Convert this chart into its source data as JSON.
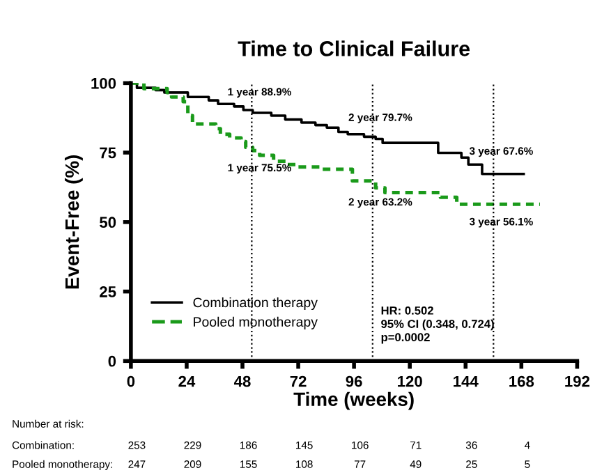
{
  "chart_data": {
    "type": "step",
    "title": "Time to Clinical Failure",
    "xlabel": "Time (weeks)",
    "ylabel": "Event-Free (%)",
    "xlim": [
      0,
      192
    ],
    "xticks": [
      0,
      24,
      48,
      72,
      96,
      120,
      144,
      168,
      192
    ],
    "ylim": [
      0,
      100
    ],
    "yticks": [
      0,
      25,
      50,
      75,
      100
    ],
    "grid": false,
    "legend": "bottom left",
    "marker": "none",
    "series": [
      {
        "name": "Combination therapy",
        "color": "#000000",
        "line_style": "solid",
        "x": [
          0,
          2.6,
          10.6,
          14.4,
          24.5,
          33.5,
          37.5,
          44.4,
          48.4,
          52.4,
          60.4,
          66.4,
          73.4,
          79.4,
          84.3,
          89.3,
          93.3,
          100.3,
          105.3,
          108.3,
          132.2,
          142.2,
          145.2,
          151.1,
          169
        ],
        "values": [
          100,
          98.3,
          97.5,
          96.6,
          95,
          93.8,
          92.5,
          91.6,
          90.3,
          89.3,
          88.3,
          86.9,
          85.8,
          84.9,
          84,
          82.4,
          81.6,
          80.7,
          79.9,
          78.5,
          74.9,
          73.2,
          70.7,
          67.3,
          67.3
        ]
      },
      {
        "name": "Pooled monotherapy",
        "color": "#1a9a1a",
        "line_style": "dashed",
        "x": [
          0,
          5.6,
          15.6,
          17.5,
          22.5,
          24.5,
          26.5,
          36.5,
          38.5,
          42.5,
          47.4,
          49.4,
          52.4,
          55.4,
          61.4,
          67.4,
          71.4,
          82.3,
          95.3,
          105.3,
          109.3,
          133.2,
          140.2,
          176
        ],
        "values": [
          100,
          98,
          96.6,
          95,
          93.3,
          88.3,
          85.3,
          83.6,
          81.6,
          80.3,
          79,
          76.9,
          75.7,
          74,
          71.9,
          70.7,
          69.8,
          69,
          64.8,
          62.3,
          60.6,
          58.9,
          56.4,
          56.4
        ]
      }
    ],
    "ref_lines": [
      {
        "axis": "x",
        "value": 52,
        "color": "#000000",
        "line_style": "dotted"
      },
      {
        "axis": "x",
        "value": 104,
        "color": "#000000",
        "line_style": "dotted"
      },
      {
        "axis": "x",
        "value": 156,
        "color": "#000000",
        "line_style": "dotted"
      }
    ],
    "annotations": [
      {
        "text": "1 year 88.9%",
        "x": 52,
        "y": 88.9
      },
      {
        "text": "1 year 75.5%",
        "x": 52,
        "y": 75.5
      },
      {
        "text": "2 year 79.7%",
        "x": 104,
        "y": 79.7
      },
      {
        "text": "2 year 63.2%",
        "x": 104,
        "y": 63.2
      },
      {
        "text": "3 year 67.6%",
        "x": 156,
        "y": 67.6
      },
      {
        "text": "3 year 56.1%",
        "x": 156,
        "y": 56.1
      },
      "HR: 0.502\n95% CI (0.348, 0.724)\np=0.0002",
      "Number at risk:",
      "Combination:",
      "253",
      "229",
      "186",
      "145",
      "106",
      "71",
      "36",
      "4",
      "Pooled monotherapy:",
      "247",
      "209",
      "155",
      "108",
      "77",
      "49",
      "25",
      "5"
    ]
  }
}
